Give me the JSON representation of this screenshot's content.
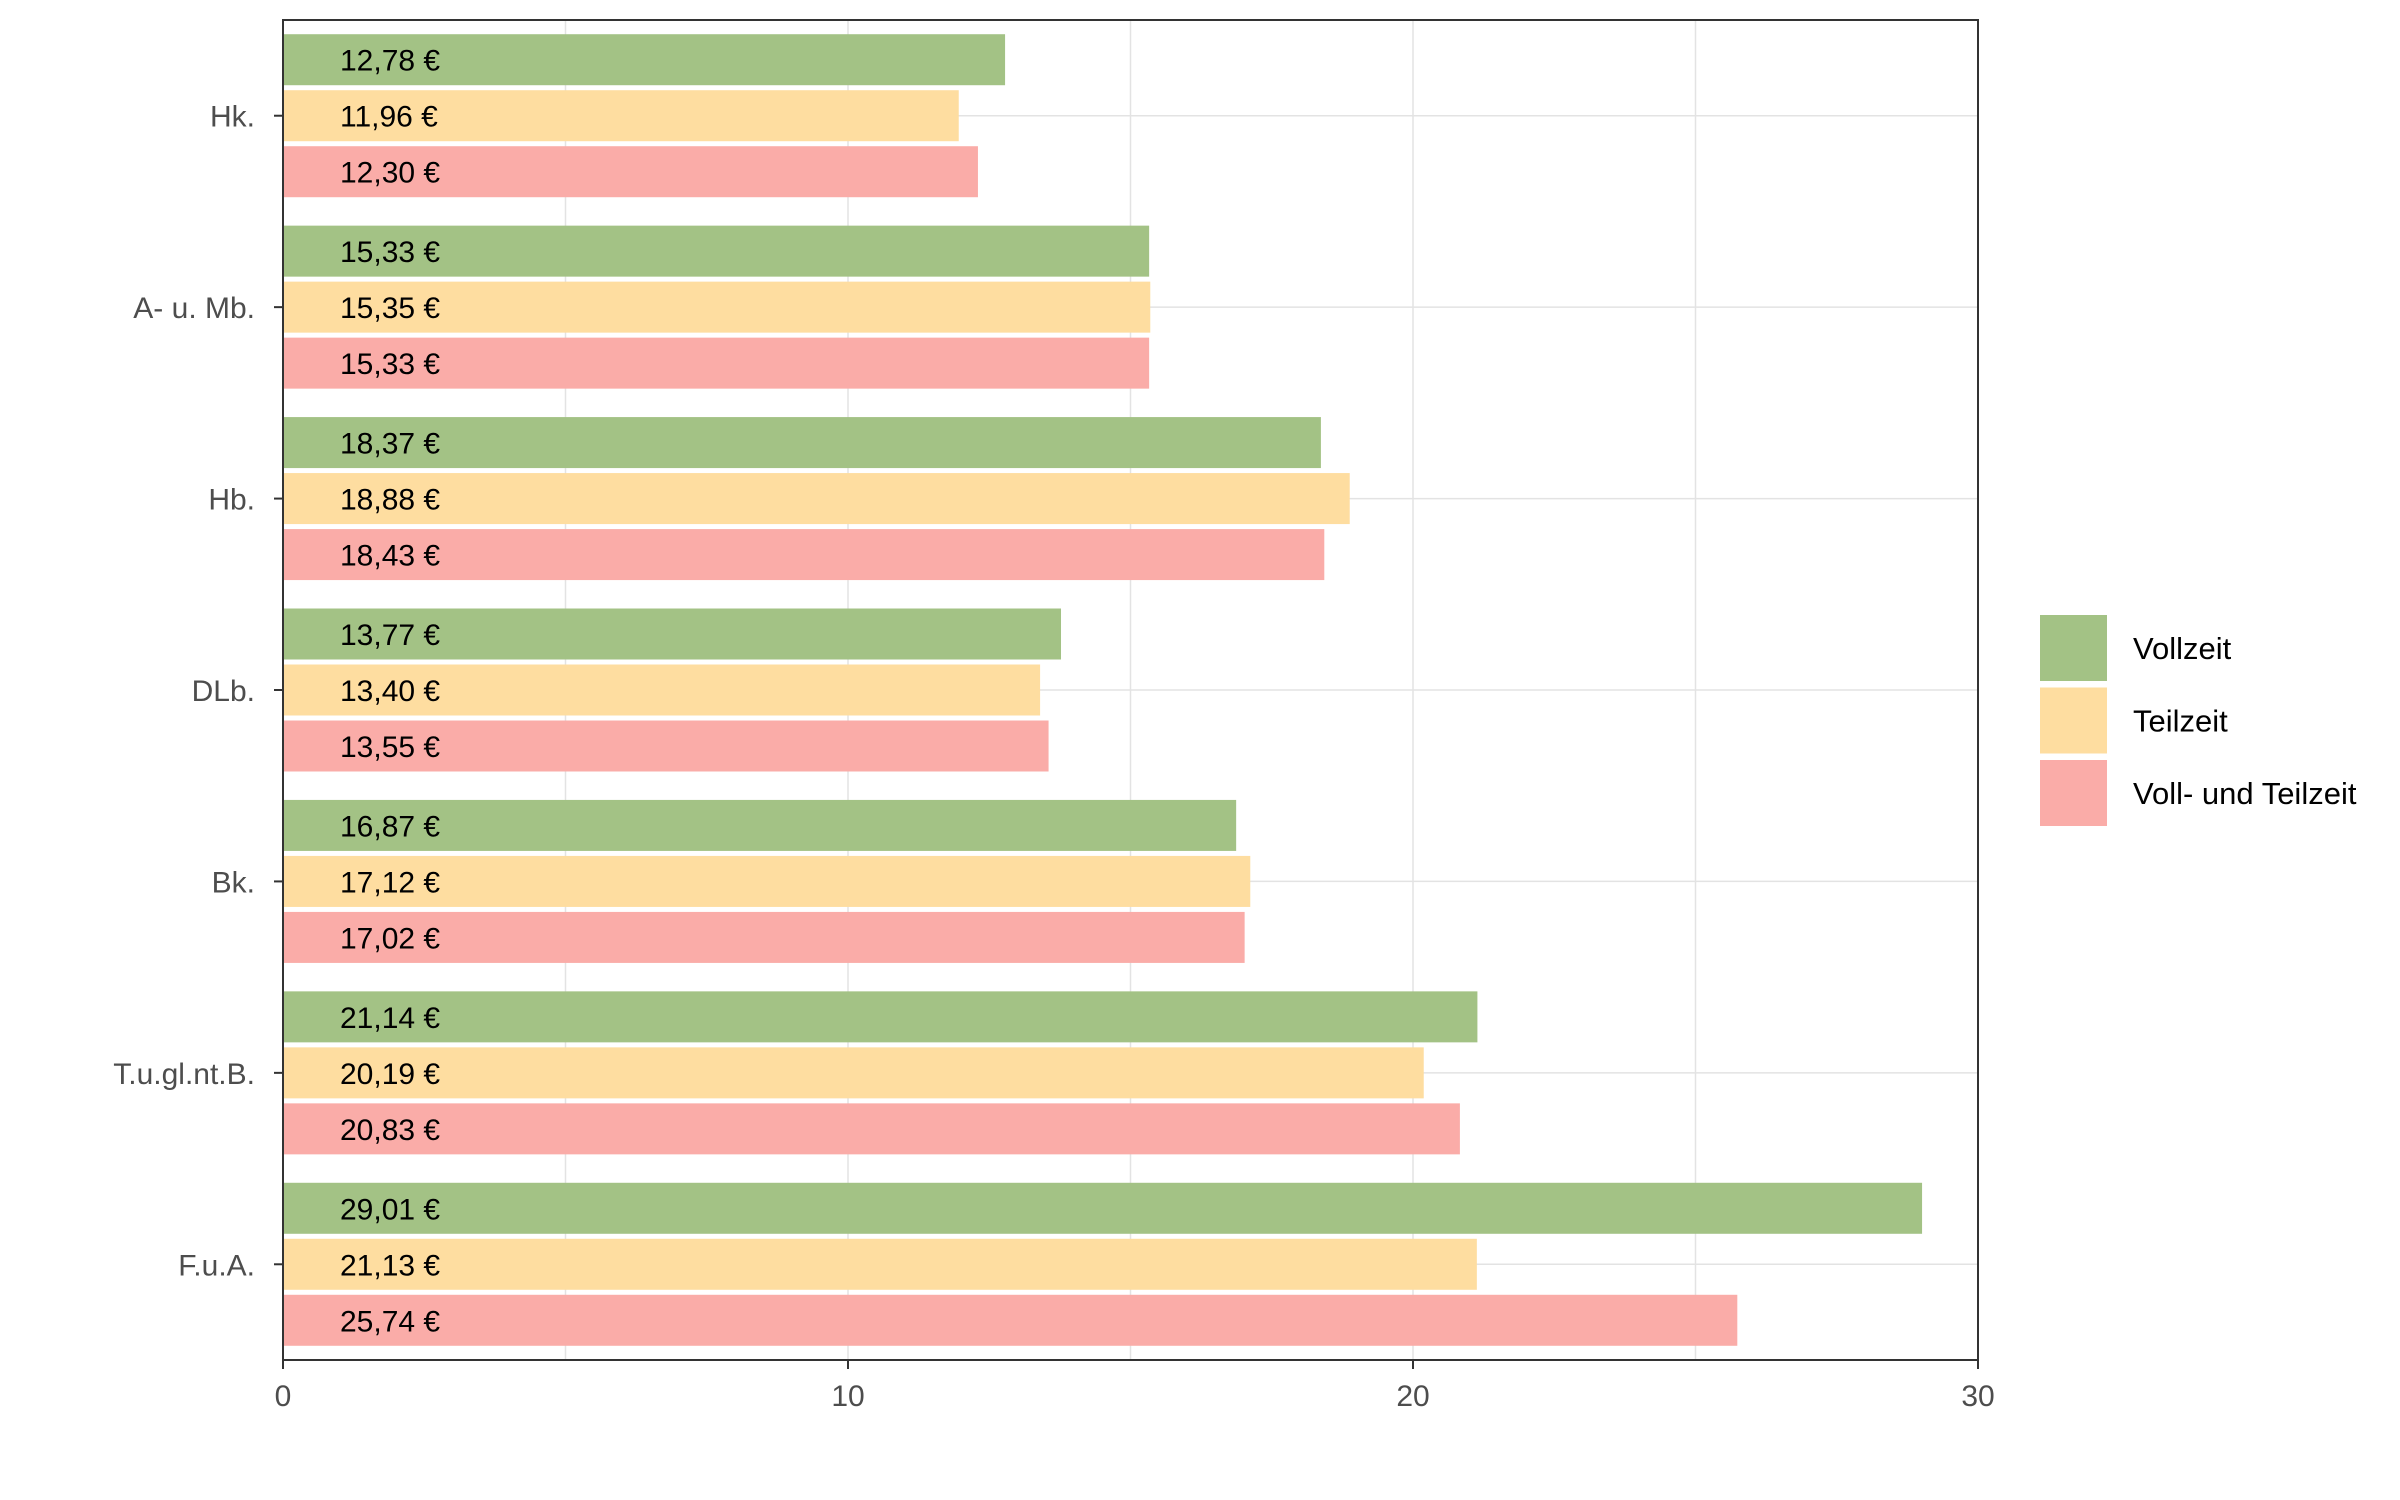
{
  "chart_data": {
    "type": "bar",
    "orientation": "horizontal",
    "categories": [
      "Hk.",
      "A- u. Mb.",
      "Hb.",
      "DLb.",
      "Bk.",
      "T.u.gl.nt.B.",
      "F.u.A."
    ],
    "series": [
      {
        "name": "Vollzeit",
        "color": "#a3c285",
        "values": [
          12.78,
          15.33,
          18.37,
          13.77,
          16.87,
          21.14,
          29.01
        ],
        "labels": [
          "12,78 €",
          "15,33 €",
          "18,37 €",
          "13,77 €",
          "16,87 €",
          "21,14 €",
          "29,01 €"
        ]
      },
      {
        "name": "Teilzeit",
        "color": "#fedda0",
        "values": [
          11.96,
          15.35,
          18.88,
          13.4,
          17.12,
          20.19,
          21.13
        ],
        "labels": [
          "11,96 €",
          "15,35 €",
          "18,88 €",
          "13,40 €",
          "17,12 €",
          "20,19 €",
          "21,13 €"
        ]
      },
      {
        "name": "Voll- und Teilzeit",
        "color": "#faaca8",
        "values": [
          12.3,
          15.33,
          18.43,
          13.55,
          17.02,
          20.83,
          25.74
        ],
        "labels": [
          "12,30 €",
          "15,33 €",
          "18,43 €",
          "13,55 €",
          "17,02 €",
          "20,83 €",
          "25,74 €"
        ]
      }
    ],
    "xlim": [
      0,
      30
    ],
    "x_ticks": [
      0,
      10,
      20,
      30
    ],
    "x_tick_labels": [
      "0",
      "10",
      "20",
      "30"
    ],
    "title": "",
    "xlabel": "",
    "ylabel": "",
    "grid": true,
    "legend": "right"
  }
}
